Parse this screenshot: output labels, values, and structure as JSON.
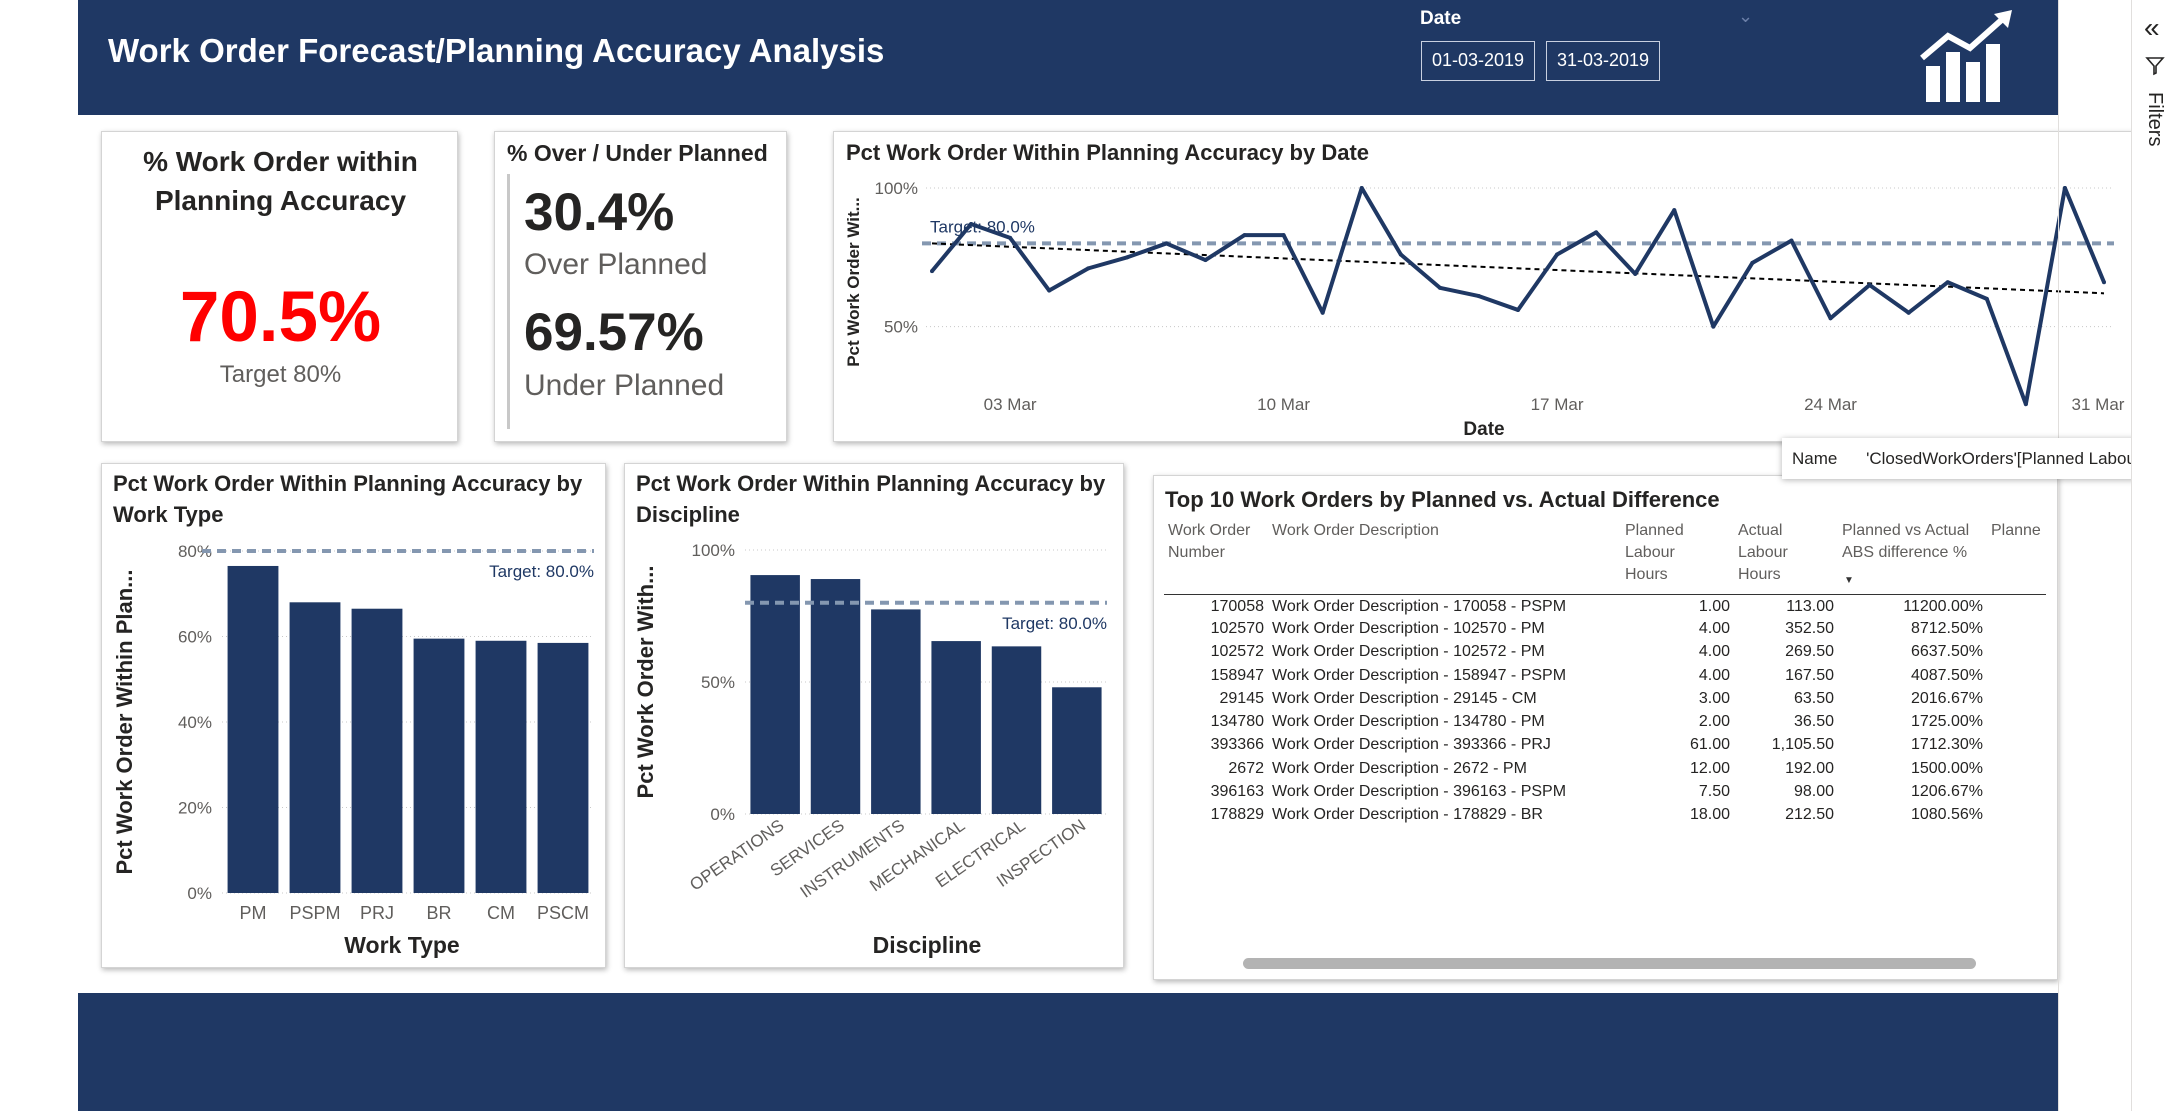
{
  "header": {
    "title": "Work Order Forecast/Planning Accuracy Analysis",
    "date_label": "Date",
    "date_start": "01-03-2019",
    "date_end": "31-03-2019",
    "logo_icon": "growth-chart-icon",
    "colors": {
      "navy": "#1f3864"
    }
  },
  "kpi": {
    "title_line1": "% Work Order within",
    "title_line2": "Planning Accuracy",
    "value": "70.5%",
    "target": "Target 80%",
    "value_color": "#ff0000"
  },
  "over_under": {
    "title": "% Over / Under Planned",
    "over_value": "30.4%",
    "over_label": "Over Planned",
    "under_value": "69.57%",
    "under_label": "Under Planned"
  },
  "chart_data": [
    {
      "type": "line",
      "title": "Pct Work Order Within Planning Accuracy by Date",
      "xlabel": "Date",
      "ylabel": "Pct Work Order Wit...",
      "x_tick_labels": [
        "03 Mar",
        "10 Mar",
        "17 Mar",
        "24 Mar",
        "31 Mar"
      ],
      "y_tick_labels": [
        "100%",
        "50%"
      ],
      "ylim": [
        30,
        100
      ],
      "x": [
        1,
        2,
        3,
        4,
        5,
        6,
        7,
        8,
        9,
        10,
        11,
        12,
        13,
        14,
        15,
        16,
        17,
        18,
        19,
        20,
        21,
        22,
        23,
        24,
        25,
        26,
        27,
        28,
        29,
        30,
        31
      ],
      "values": [
        70,
        87,
        82,
        63,
        71,
        75,
        80,
        74,
        83,
        83,
        55,
        100,
        76,
        64,
        61,
        56,
        76,
        84,
        69,
        92,
        50,
        73,
        81,
        53,
        65,
        55,
        66,
        60,
        22,
        100,
        66
      ],
      "target": 80,
      "target_label": "Target: 80.0%",
      "trend": [
        80,
        62
      ],
      "grid": true,
      "colors": {
        "line": "#1f3864",
        "target": "#8497b0",
        "trend": "#000000"
      }
    },
    {
      "type": "bar",
      "title": "Pct Work Order Within Planning Accuracy by Work Type",
      "xlabel": "Work Type",
      "ylabel": "Pct Work Order Within Plan...",
      "categories": [
        "PM",
        "PSPM",
        "PRJ",
        "BR",
        "CM",
        "PSCM"
      ],
      "values": [
        76.5,
        68,
        66.5,
        59.5,
        59,
        58.5
      ],
      "y_tick_labels": [
        "0%",
        "20%",
        "40%",
        "60%",
        "80%"
      ],
      "ylim": [
        0,
        80
      ],
      "target": 80,
      "target_label": "Target: 80.0%",
      "grid": true,
      "colors": {
        "bar": "#1f3864",
        "target": "#8497b0"
      }
    },
    {
      "type": "bar",
      "title": "Pct Work Order Within Planning Accuracy by Discipline",
      "xlabel": "Discipline",
      "ylabel": "Pct Work Order With...",
      "categories": [
        "OPERATIONS",
        "SERVICES",
        "INSTRUMENTS",
        "MECHANICAL",
        "ELECTRICAL",
        "INSPECTION"
      ],
      "values": [
        90.5,
        89,
        77.5,
        65.5,
        63.5,
        48
      ],
      "y_tick_labels": [
        "0%",
        "50%",
        "100%"
      ],
      "ylim": [
        0,
        100
      ],
      "target": 80,
      "target_label": "Target: 80.0%",
      "grid": true,
      "colors": {
        "bar": "#1f3864",
        "target": "#8497b0"
      }
    },
    {
      "type": "table",
      "title": "Top 10 Work Orders by Planned vs. Actual Difference",
      "columns": [
        "Work Order Number",
        "Work Order Description",
        "Planned Labour Hours",
        "Actual Labour Hours",
        "Planned vs Actual ABS difference %",
        "Planne"
      ],
      "rows": [
        [
          "170058",
          "Work Order Description - 170058 - PSPM",
          "1.00",
          "113.00",
          "11200.00%"
        ],
        [
          "102570",
          "Work Order Description - 102570 - PM",
          "4.00",
          "352.50",
          "8712.50%"
        ],
        [
          "102572",
          "Work Order Description - 102572 - PM",
          "4.00",
          "269.50",
          "6637.50%"
        ],
        [
          "158947",
          "Work Order Description - 158947 - PSPM",
          "4.00",
          "167.50",
          "4087.50%"
        ],
        [
          "29145",
          "Work Order Description - 29145 - CM",
          "3.00",
          "63.50",
          "2016.67%"
        ],
        [
          "134780",
          "Work Order Description - 134780 - PM",
          "2.00",
          "36.50",
          "1725.00%"
        ],
        [
          "393366",
          "Work Order Description - 393366 - PRJ",
          "61.00",
          "1,105.50",
          "1712.30%"
        ],
        [
          "2672",
          "Work Order Description - 2672 - PM",
          "12.00",
          "192.00",
          "1500.00%"
        ],
        [
          "396163",
          "Work Order Description - 396163 - PSPM",
          "7.50",
          "98.00",
          "1206.67%"
        ],
        [
          "178829",
          "Work Order Description - 178829 - BR",
          "18.00",
          "212.50",
          "1080.56%"
        ]
      ]
    }
  ],
  "table_header": {
    "col1_l1": "Work Order",
    "col1_l2": "Number",
    "col2": "Work Order Description",
    "col3_l1": "Planned",
    "col3_l2": "Labour",
    "col3_l3": "Hours",
    "col4_l1": "Actual",
    "col4_l2": "Labour",
    "col4_l3": "Hours",
    "col5_l1": "Planned vs Actual",
    "col5_l2": "ABS difference %",
    "col6": "Planne"
  },
  "tooltip": {
    "key": "Name",
    "value": "'ClosedWorkOrders'[Planned Labour Ho"
  },
  "filter_pane": {
    "label": "Filters",
    "collapse_icon": "double-chevron-left-icon",
    "filter_icon": "funnel-icon"
  }
}
